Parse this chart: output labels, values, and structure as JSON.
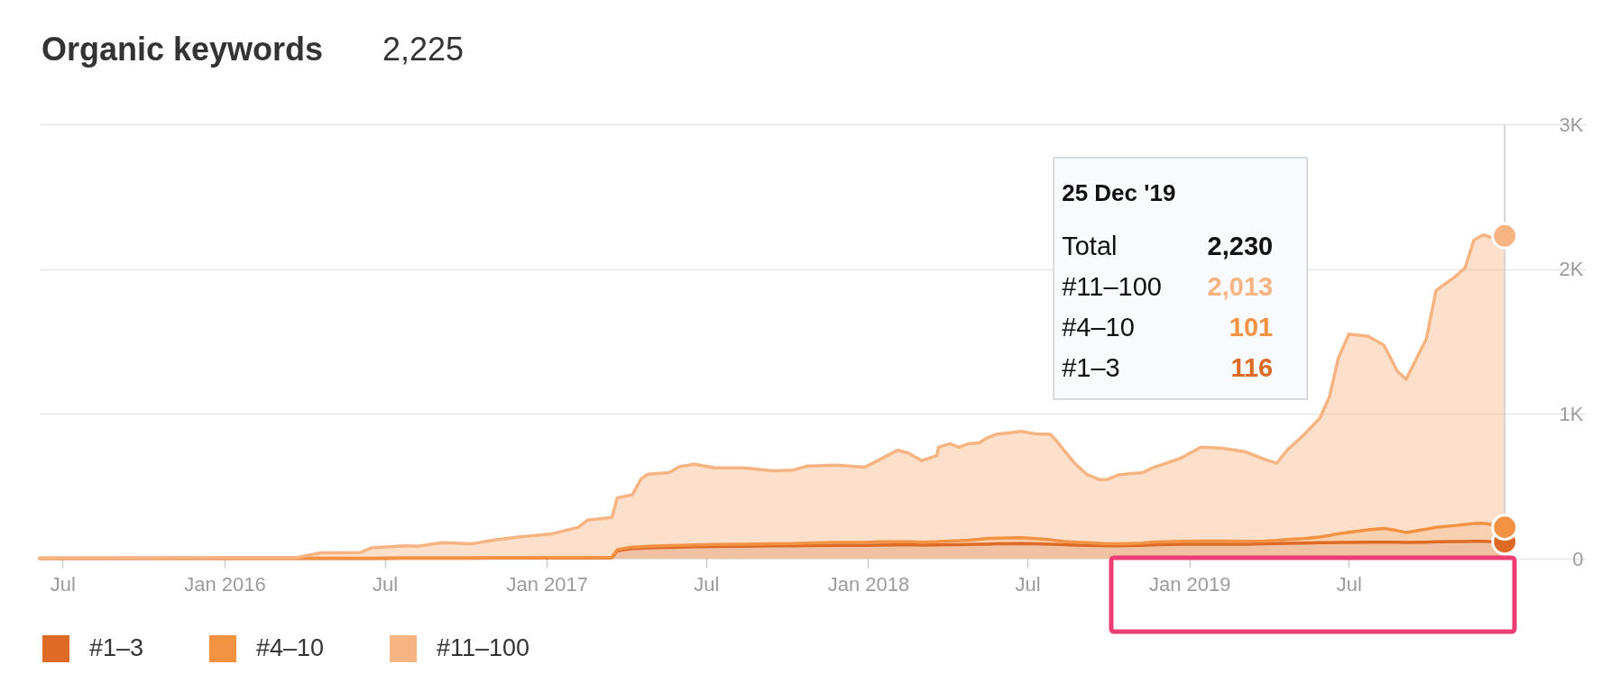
{
  "chart_data": {
    "type": "area",
    "title": "Organic keywords",
    "subtitle": "2,225",
    "x": [
      "2015-06-05",
      "2016-03-23",
      "2016-04-20",
      "2016-06-03",
      "2016-06-16",
      "2016-07-24",
      "2016-08-07",
      "2016-09-04",
      "2016-10-07",
      "2016-11-04",
      "2016-12-02",
      "2017-01-05",
      "2017-02-06",
      "2017-02-16",
      "2017-03-16",
      "2017-03-22",
      "2017-04-08",
      "2017-04-18",
      "2017-04-26",
      "2017-05-20",
      "2017-06-01",
      "2017-06-18",
      "2017-07-11",
      "2017-08-13",
      "2017-09-15",
      "2017-10-08",
      "2017-10-24",
      "2017-11-26",
      "2017-12-28",
      "2018-01-13",
      "2018-02-03",
      "2018-02-15",
      "2018-03-03",
      "2018-03-20",
      "2018-03-22",
      "2018-04-04",
      "2018-04-14",
      "2018-04-25",
      "2018-05-07",
      "2018-05-15",
      "2018-05-27",
      "2018-06-24",
      "2018-07-10",
      "2018-07-27",
      "2018-08-04",
      "2018-08-12",
      "2018-08-24",
      "2018-09-06",
      "2018-09-21",
      "2018-09-29",
      "2018-10-12",
      "2018-10-24",
      "2018-11-09",
      "2018-11-19",
      "2018-12-22",
      "2019-01-14",
      "2019-02-08",
      "2019-03-06",
      "2019-03-27",
      "2019-04-10",
      "2019-04-22",
      "2019-05-10",
      "2019-05-29",
      "2019-06-09",
      "2019-06-19",
      "2019-07-01",
      "2019-07-23",
      "2019-08-10",
      "2019-08-25",
      "2019-09-04",
      "2019-09-27",
      "2019-10-08",
      "2019-10-29",
      "2019-11-10",
      "2019-11-20",
      "2019-12-01",
      "2019-12-08",
      "2019-12-25"
    ],
    "series": [
      {
        "name": "#1–3",
        "color": "#dd6b26",
        "values": [
          2,
          2,
          2,
          2,
          2,
          3,
          3,
          3,
          3,
          4,
          4,
          5,
          5,
          5,
          6,
          55,
          70,
          72,
          74,
          78,
          80,
          82,
          84,
          86,
          88,
          88,
          90,
          92,
          92,
          94,
          95,
          95,
          94,
          95,
          95,
          96,
          96,
          98,
          100,
          100,
          102,
          104,
          102,
          100,
          98,
          96,
          94,
          92,
          90,
          88,
          88,
          90,
          92,
          95,
          100,
          100,
          100,
          100,
          102,
          104,
          106,
          108,
          110,
          110,
          112,
          112,
          114,
          114,
          114,
          112,
          114,
          116,
          118,
          118,
          120,
          120,
          118,
          116
        ]
      },
      {
        "name": "#4–10",
        "color": "#f39243",
        "values": [
          1,
          1,
          1,
          1,
          1,
          1,
          1,
          2,
          2,
          2,
          2,
          3,
          3,
          3,
          3,
          8,
          10,
          10,
          11,
          12,
          12,
          13,
          14,
          14,
          15,
          16,
          18,
          20,
          20,
          22,
          22,
          22,
          20,
          22,
          24,
          26,
          28,
          30,
          34,
          38,
          40,
          40,
          36,
          30,
          26,
          22,
          20,
          18,
          16,
          15,
          15,
          15,
          16,
          18,
          20,
          22,
          22,
          20,
          20,
          22,
          26,
          30,
          40,
          50,
          60,
          70,
          85,
          95,
          80,
          68,
          90,
          100,
          110,
          118,
          122,
          125,
          120,
          101
        ]
      },
      {
        "name": "#11–100",
        "color": "#f7b482",
        "values": [
          2,
          5,
          37,
          39,
          72,
          84,
          81,
          105,
          97,
          125,
          145,
          161,
          209,
          258,
          276,
          357,
          360,
          468,
          499,
          505,
          545,
          557,
          529,
          527,
          504,
          508,
          532,
          533,
          520,
          565,
          631,
          614,
          563,
          595,
          650,
          672,
          645,
          666,
          666,
          693,
          717,
          735,
          724,
          729,
          682,
          626,
          542,
          473,
          440,
          443,
          475,
          482,
          487,
          512,
          574,
          648,
          641,
          617,
          565,
          533,
          618,
          712,
          821,
          959,
          1212,
          1369,
          1337,
          1264,
          1101,
          1059,
          1315,
          1636,
          1716,
          1773,
          1958,
          1992,
          1983,
          2013
        ]
      }
    ],
    "stacked": true,
    "xlim": [
      "2015-06-05",
      "2020-03-26"
    ],
    "xticks": [
      {
        "value": "2015-07-01",
        "label": "Jul"
      },
      {
        "value": "2016-01-01",
        "label": "Jan 2016"
      },
      {
        "value": "2016-07-01",
        "label": "Jul"
      },
      {
        "value": "2017-01-01",
        "label": "Jan 2017"
      },
      {
        "value": "2017-07-01",
        "label": "Jul"
      },
      {
        "value": "2018-01-01",
        "label": "Jan 2018"
      },
      {
        "value": "2018-07-01",
        "label": "Jul"
      },
      {
        "value": "2019-01-01",
        "label": "Jan 2019"
      },
      {
        "value": "2019-07-01",
        "label": "Jul"
      }
    ],
    "ylim": [
      0,
      3000
    ],
    "yticks": [
      0,
      {
        "value": 1000,
        "label": "1K"
      },
      {
        "value": 2000,
        "label": "2K"
      },
      {
        "value": 3000,
        "label": "3K"
      }
    ],
    "grid": "y",
    "legend": "bottom left",
    "ref_lines": [
      {
        "axis": "x",
        "value": "2019-12-25",
        "color": "#d6d6d6"
      }
    ],
    "annotations": [
      "25 Dec '19",
      "Total",
      "2,230",
      "#11–100",
      "2,013",
      "#4–10",
      "101",
      "#1–3",
      "116"
    ]
  }
}
